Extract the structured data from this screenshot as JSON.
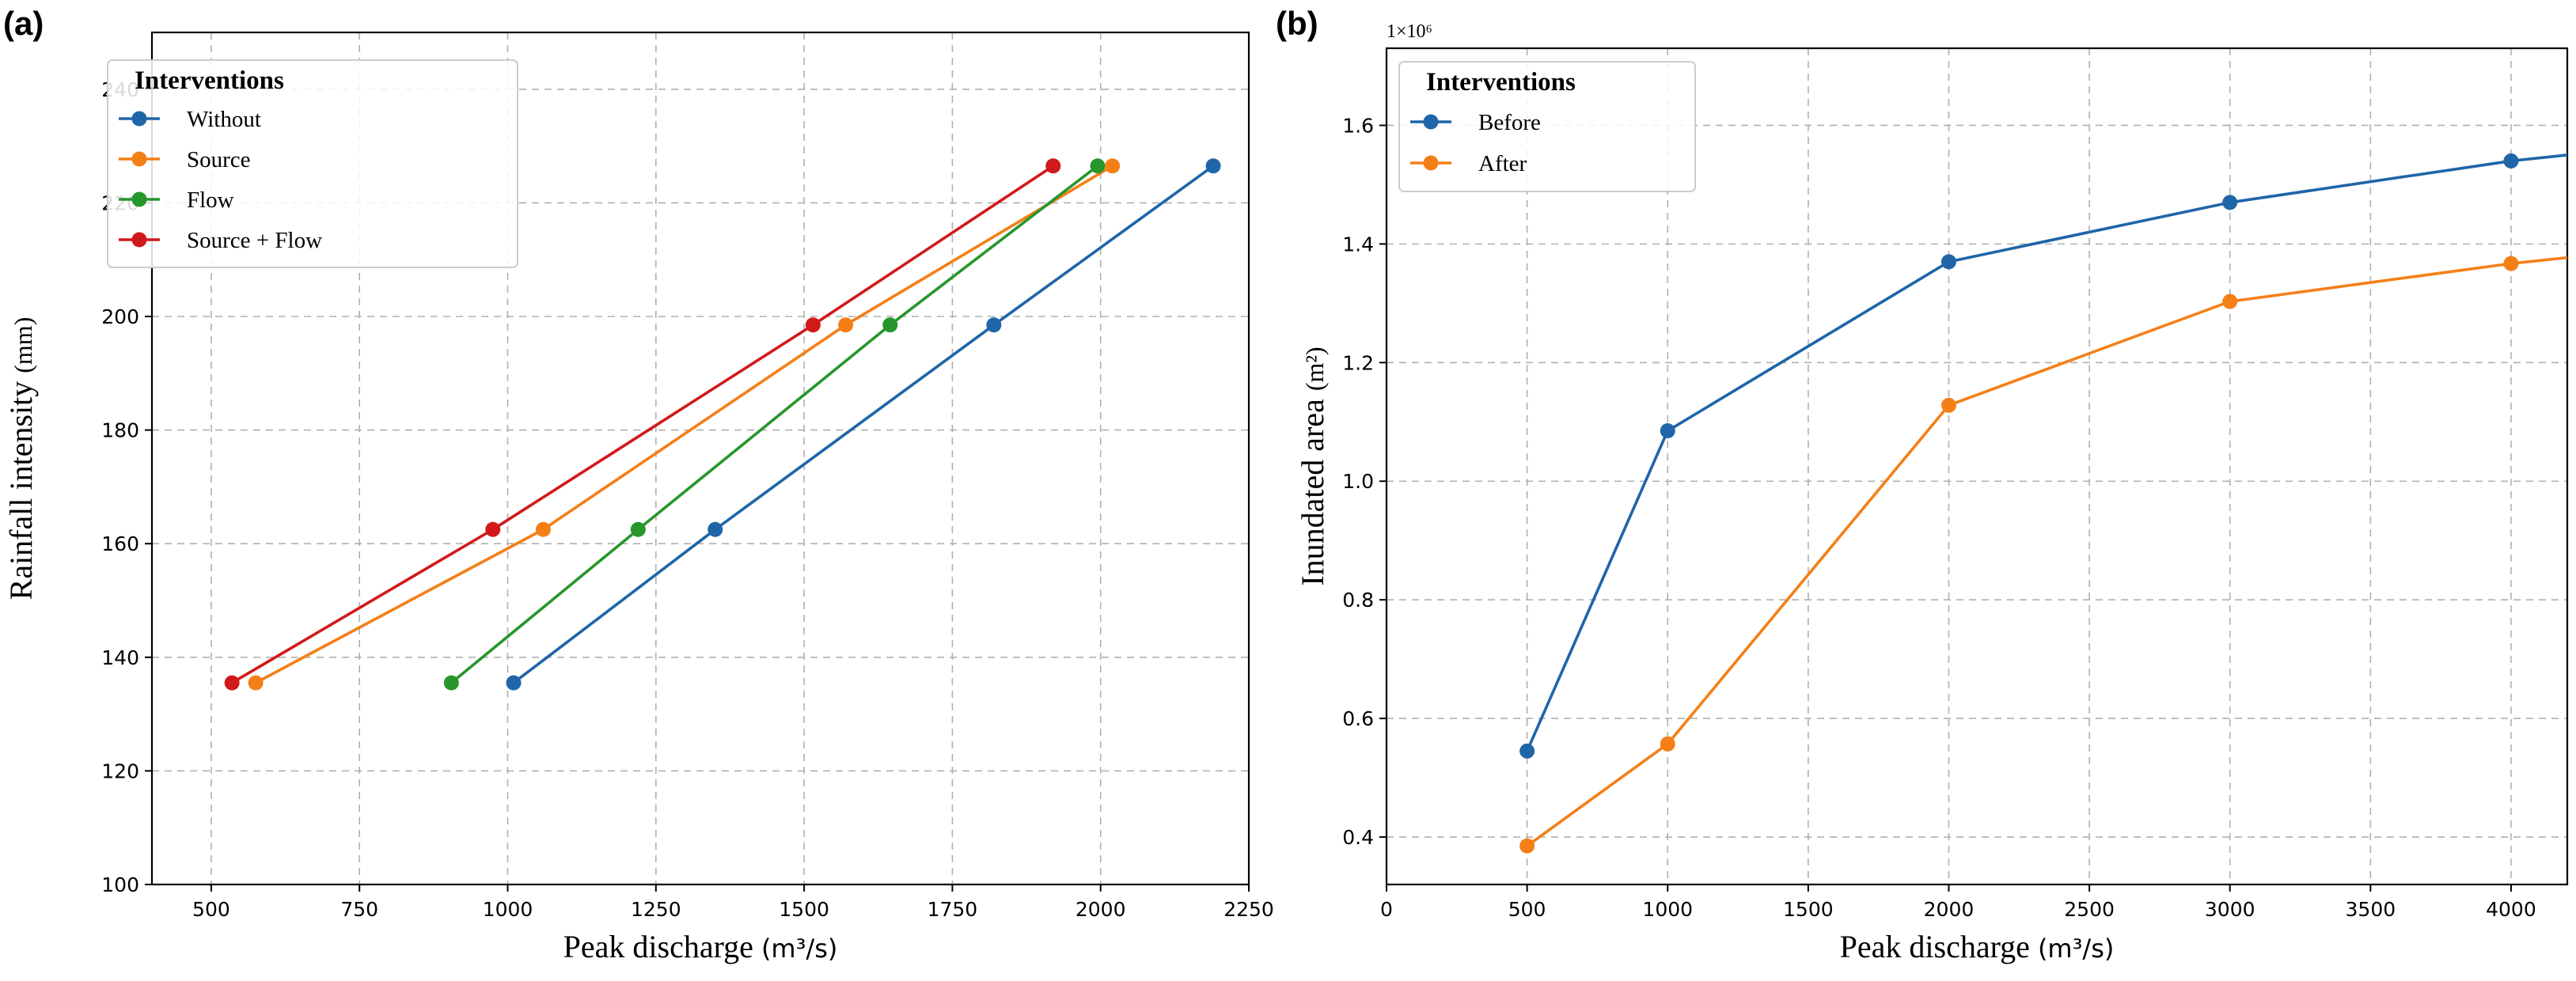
{
  "chart_data": [
    {
      "panel_label": "(a)",
      "type": "line",
      "xlabel": "Peak discharge",
      "xunit": "(m³/s)",
      "ylabel": "Rainfall intensity",
      "yunit": "(mm)",
      "xlim": [
        400,
        2250
      ],
      "ylim": [
        100,
        250
      ],
      "xticks": [
        500,
        750,
        1000,
        1250,
        1500,
        1750,
        2000,
        2250
      ],
      "yticks": [
        100,
        120,
        140,
        160,
        180,
        200,
        220,
        240
      ],
      "grid": true,
      "legend": {
        "title": "Interventions",
        "placement": "top-left"
      },
      "series": [
        {
          "name": "Without",
          "color": "#1f65a8",
          "x": [
            1010,
            1350,
            1820,
            2190
          ],
          "y": [
            135.5,
            162.5,
            198.5,
            226.5
          ]
        },
        {
          "name": "Source",
          "color": "#f57f17",
          "x": [
            575,
            1060,
            1570,
            2020
          ],
          "y": [
            135.5,
            162.5,
            198.5,
            226.5
          ]
        },
        {
          "name": "Flow",
          "color": "#27962b",
          "x": [
            905,
            1220,
            1645,
            1995
          ],
          "y": [
            135.5,
            162.5,
            198.5,
            226.5
          ]
        },
        {
          "name": "Source + Flow",
          "color": "#d1191b",
          "x": [
            535,
            975,
            1515,
            1920
          ],
          "y": [
            135.5,
            162.5,
            198.5,
            226.5
          ]
        }
      ]
    },
    {
      "panel_label": "(b)",
      "type": "line",
      "xlabel": "Peak discharge",
      "xunit": "(m³/s)",
      "ylabel": "Inundated area",
      "yunit": "(m²)",
      "offset_text": "1×10⁶",
      "xlim": [
        0,
        4200
      ],
      "ylim": [
        0.32,
        1.73
      ],
      "xticks": [
        0,
        500,
        1000,
        1500,
        2000,
        2500,
        3000,
        3500,
        4000
      ],
      "yticks": [
        0.4,
        0.6,
        0.8,
        1.0,
        1.2,
        1.4,
        1.6
      ],
      "ytick_labels": [
        "0.4",
        "0.6",
        "0.8",
        "1.0",
        "1.2",
        "1.4",
        "1.6"
      ],
      "grid": true,
      "legend": {
        "title": "Interventions",
        "placement": "top-left"
      },
      "series": [
        {
          "name": "Before",
          "color": "#1f65a8",
          "x": [
            500,
            1000,
            2000,
            3000,
            4000,
            4200
          ],
          "y": [
            0.545,
            1.085,
            1.37,
            1.47,
            1.54,
            1.55
          ],
          "markers": [
            true,
            true,
            true,
            true,
            true,
            false
          ]
        },
        {
          "name": "After",
          "color": "#f57f17",
          "x": [
            500,
            1000,
            2000,
            3000,
            4000,
            4200
          ],
          "y": [
            0.385,
            0.557,
            1.128,
            1.303,
            1.367,
            1.377
          ],
          "markers": [
            true,
            true,
            true,
            true,
            true,
            false
          ]
        }
      ]
    }
  ]
}
